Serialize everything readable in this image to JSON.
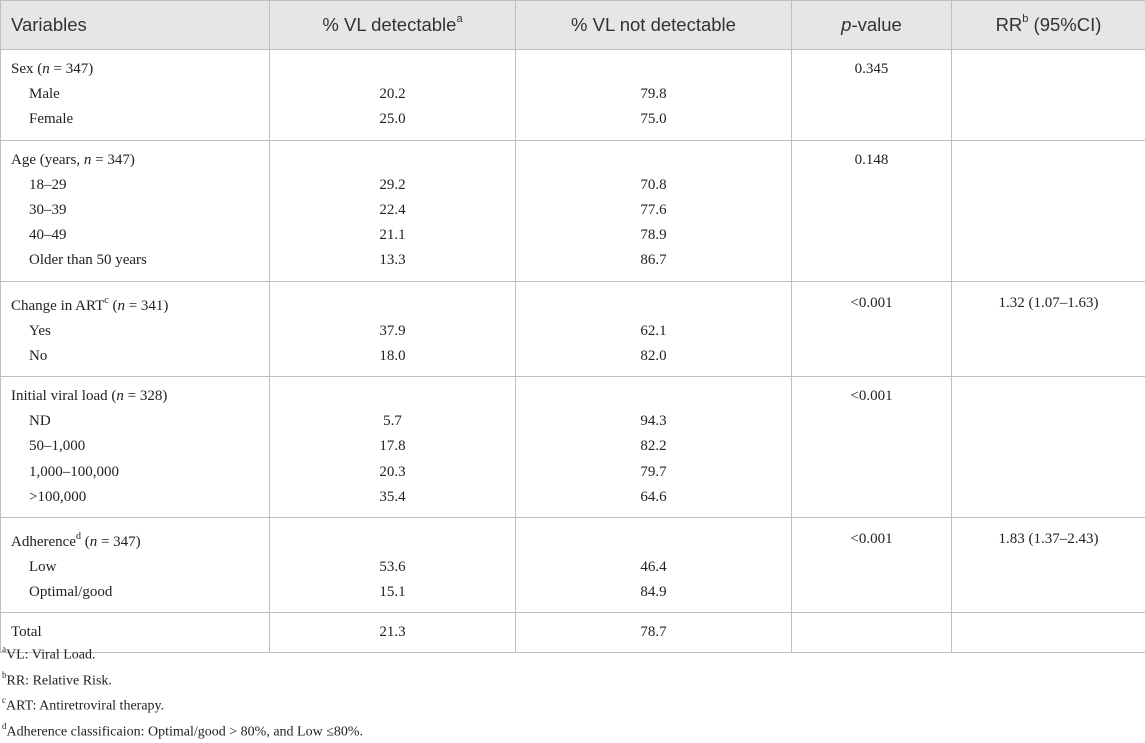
{
  "header": {
    "variables": "Variables",
    "detectable": "% VL detectable",
    "detectable_sup": "a",
    "not_detectable": "% VL not detectable",
    "pvalue_italic": "p",
    "pvalue_rest": "-value",
    "rr": "RR",
    "rr_sup": "b",
    "rr_rest": " (95%CI)"
  },
  "groups": {
    "sex": {
      "label_a": "Sex (",
      "label_n": "n",
      "label_b": " = 347)",
      "p": "0.345",
      "rr": "",
      "rows": [
        {
          "label": "Male",
          "det": "20.2",
          "notdet": "79.8"
        },
        {
          "label": "Female",
          "det": "25.0",
          "notdet": "75.0"
        }
      ]
    },
    "age": {
      "label_a": "Age (years, ",
      "label_n": "n",
      "label_b": " = 347)",
      "p": "0.148",
      "rr": "",
      "rows": [
        {
          "label": "18–29",
          "det": "29.2",
          "notdet": "70.8"
        },
        {
          "label": "30–39",
          "det": "22.4",
          "notdet": "77.6"
        },
        {
          "label": "40–49",
          "det": "21.1",
          "notdet": "78.9"
        },
        {
          "label": "Older than 50 years",
          "det": "13.3",
          "notdet": "86.7"
        }
      ]
    },
    "art": {
      "label_a": "Change in ART",
      "label_sup": "c",
      "label_mid": " (",
      "label_n": "n",
      "label_b": " = 341)",
      "p": "<0.001",
      "rr": "1.32 (1.07–1.63)",
      "rows": [
        {
          "label": "Yes",
          "det": "37.9",
          "notdet": "62.1"
        },
        {
          "label": "No",
          "det": "18.0",
          "notdet": "82.0"
        }
      ]
    },
    "viral": {
      "label_a": "Initial viral load (",
      "label_n": "n",
      "label_b": " = 328)",
      "p": "<0.001",
      "rr": "",
      "rows": [
        {
          "label": "ND",
          "det": "5.7",
          "notdet": "94.3"
        },
        {
          "label": "50–1,000",
          "det": "17.8",
          "notdet": "82.2"
        },
        {
          "label": "1,000–100,000",
          "det": "20.3",
          "notdet": "79.7"
        },
        {
          "label": ">100,000",
          "det": "35.4",
          "notdet": "64.6"
        }
      ]
    },
    "adherence": {
      "label_a": "Adherence",
      "label_sup": "d",
      "label_mid": " (",
      "label_n": "n",
      "label_b": " = 347)",
      "p": "<0.001",
      "rr": "1.83 (1.37–2.43)",
      "rows": [
        {
          "label": "Low",
          "det": "53.6",
          "notdet": "46.4"
        },
        {
          "label": "Optimal/good",
          "det": "15.1",
          "notdet": "84.9"
        }
      ]
    },
    "total": {
      "label": "Total",
      "det": "21.3",
      "notdet": "78.7"
    }
  },
  "footnotes": [
    {
      "sup": "a",
      "text": "VL: Viral Load."
    },
    {
      "sup": "b",
      "text": "RR: Relative Risk."
    },
    {
      "sup": "c",
      "text": "ART: Antiretroviral therapy."
    },
    {
      "sup": "d",
      "text": "Adherence classificaion: Optimal/good > 80%, and Low ≤80%."
    }
  ]
}
